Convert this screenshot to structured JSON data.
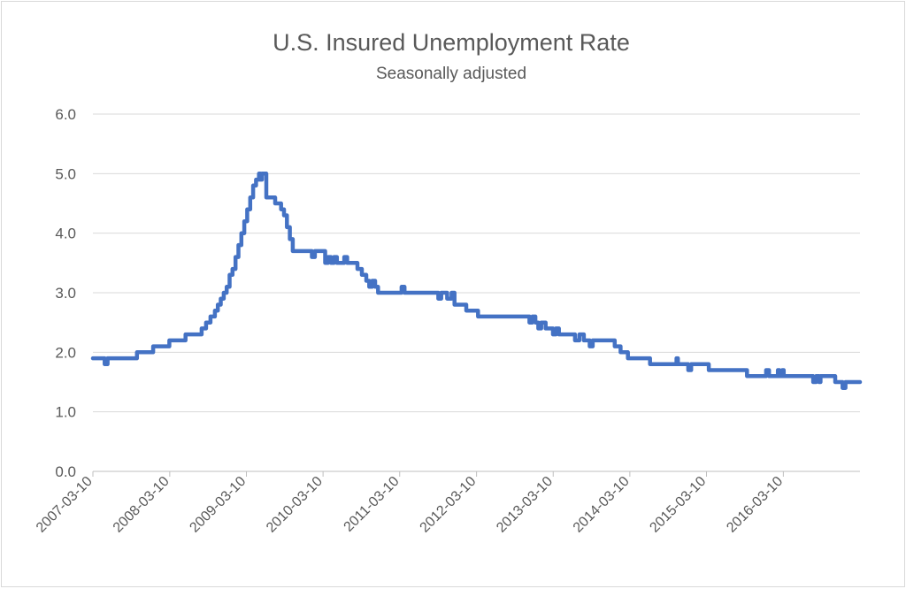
{
  "chart_data": {
    "type": "line",
    "title": "U.S. Insured Unemployment Rate",
    "subtitle": "Seasonally adjusted",
    "xlabel": "",
    "ylabel": "",
    "ylim": [
      0,
      6
    ],
    "yticks": [
      "0.0",
      "1.0",
      "2.0",
      "3.0",
      "4.0",
      "5.0",
      "6.0"
    ],
    "xlim": [
      "2007-03-10",
      "2017-03-10"
    ],
    "xticks": [
      "2007-03-10",
      "2008-03-10",
      "2009-03-10",
      "2010-03-10",
      "2011-03-10",
      "2012-03-10",
      "2013-03-10",
      "2014-03-10",
      "2015-03-10",
      "2016-03-10"
    ],
    "grid": true,
    "legend": "none",
    "series": [
      {
        "color": "#4472c4",
        "points": [
          [
            "2007-03-10",
            1.9
          ],
          [
            "2007-04-21",
            1.9
          ],
          [
            "2007-05-05",
            1.8
          ],
          [
            "2007-05-19",
            1.9
          ],
          [
            "2007-09-22",
            1.9
          ],
          [
            "2007-10-06",
            2.0
          ],
          [
            "2007-12-08",
            2.0
          ],
          [
            "2007-12-22",
            2.1
          ],
          [
            "2008-02-23",
            2.1
          ],
          [
            "2008-03-08",
            2.2
          ],
          [
            "2008-05-10",
            2.2
          ],
          [
            "2008-05-24",
            2.3
          ],
          [
            "2008-07-26",
            2.3
          ],
          [
            "2008-08-09",
            2.4
          ],
          [
            "2008-08-30",
            2.5
          ],
          [
            "2008-09-20",
            2.6
          ],
          [
            "2008-10-11",
            2.7
          ],
          [
            "2008-10-25",
            2.8
          ],
          [
            "2008-11-08",
            2.9
          ],
          [
            "2008-11-22",
            3.0
          ],
          [
            "2008-12-06",
            3.1
          ],
          [
            "2008-12-20",
            3.3
          ],
          [
            "2009-01-03",
            3.4
          ],
          [
            "2009-01-17",
            3.6
          ],
          [
            "2009-01-31",
            3.8
          ],
          [
            "2009-02-14",
            4.0
          ],
          [
            "2009-02-28",
            4.2
          ],
          [
            "2009-03-14",
            4.4
          ],
          [
            "2009-03-28",
            4.6
          ],
          [
            "2009-04-11",
            4.8
          ],
          [
            "2009-04-25",
            4.9
          ],
          [
            "2009-05-09",
            5.0
          ],
          [
            "2009-05-16",
            4.9
          ],
          [
            "2009-05-23",
            5.0
          ],
          [
            "2009-06-06",
            5.0
          ],
          [
            "2009-06-13",
            4.6
          ],
          [
            "2009-07-18",
            4.6
          ],
          [
            "2009-07-25",
            4.5
          ],
          [
            "2009-08-08",
            4.5
          ],
          [
            "2009-08-22",
            4.4
          ],
          [
            "2009-09-05",
            4.3
          ],
          [
            "2009-09-19",
            4.1
          ],
          [
            "2009-10-03",
            3.9
          ],
          [
            "2009-10-17",
            3.7
          ],
          [
            "2010-01-09",
            3.7
          ],
          [
            "2010-01-16",
            3.6
          ],
          [
            "2010-01-30",
            3.7
          ],
          [
            "2010-03-13",
            3.7
          ],
          [
            "2010-03-20",
            3.5
          ],
          [
            "2010-04-03",
            3.6
          ],
          [
            "2010-04-17",
            3.5
          ],
          [
            "2010-05-01",
            3.6
          ],
          [
            "2010-05-15",
            3.5
          ],
          [
            "2010-06-05",
            3.5
          ],
          [
            "2010-06-19",
            3.6
          ],
          [
            "2010-07-03",
            3.5
          ],
          [
            "2010-08-07",
            3.5
          ],
          [
            "2010-08-21",
            3.4
          ],
          [
            "2010-09-11",
            3.3
          ],
          [
            "2010-10-02",
            3.2
          ],
          [
            "2010-10-16",
            3.1
          ],
          [
            "2010-10-30",
            3.2
          ],
          [
            "2010-11-13",
            3.1
          ],
          [
            "2010-11-27",
            3.0
          ],
          [
            "2011-03-12",
            3.0
          ],
          [
            "2011-03-19",
            3.1
          ],
          [
            "2011-04-02",
            3.0
          ],
          [
            "2011-09-03",
            3.0
          ],
          [
            "2011-09-10",
            2.9
          ],
          [
            "2011-09-24",
            3.0
          ],
          [
            "2011-10-15",
            3.0
          ],
          [
            "2011-10-22",
            2.9
          ],
          [
            "2011-11-05",
            2.9
          ],
          [
            "2011-11-12",
            3.0
          ],
          [
            "2011-11-26",
            2.8
          ],
          [
            "2012-01-07",
            2.8
          ],
          [
            "2012-01-21",
            2.7
          ],
          [
            "2012-03-03",
            2.7
          ],
          [
            "2012-03-17",
            2.6
          ],
          [
            "2012-11-10",
            2.6
          ],
          [
            "2012-11-17",
            2.5
          ],
          [
            "2012-12-01",
            2.6
          ],
          [
            "2012-12-15",
            2.5
          ],
          [
            "2012-12-29",
            2.4
          ],
          [
            "2013-01-12",
            2.5
          ],
          [
            "2013-02-02",
            2.4
          ],
          [
            "2013-02-23",
            2.4
          ],
          [
            "2013-03-09",
            2.3
          ],
          [
            "2013-03-23",
            2.4
          ],
          [
            "2013-04-06",
            2.3
          ],
          [
            "2013-06-08",
            2.3
          ],
          [
            "2013-06-22",
            2.2
          ],
          [
            "2013-07-13",
            2.3
          ],
          [
            "2013-08-03",
            2.2
          ],
          [
            "2013-08-24",
            2.2
          ],
          [
            "2013-08-31",
            2.1
          ],
          [
            "2013-09-14",
            2.2
          ],
          [
            "2013-12-21",
            2.2
          ],
          [
            "2013-12-28",
            2.1
          ],
          [
            "2014-01-11",
            2.1
          ],
          [
            "2014-01-25",
            2.0
          ],
          [
            "2014-02-15",
            2.0
          ],
          [
            "2014-03-01",
            1.9
          ],
          [
            "2014-05-31",
            1.9
          ],
          [
            "2014-06-14",
            1.8
          ],
          [
            "2014-10-04",
            1.8
          ],
          [
            "2014-10-18",
            1.9
          ],
          [
            "2014-10-25",
            1.8
          ],
          [
            "2014-12-06",
            1.8
          ],
          [
            "2014-12-13",
            1.7
          ],
          [
            "2014-12-27",
            1.8
          ],
          [
            "2015-03-07",
            1.8
          ],
          [
            "2015-03-21",
            1.7
          ],
          [
            "2015-09-12",
            1.7
          ],
          [
            "2015-09-19",
            1.6
          ],
          [
            "2015-12-12",
            1.6
          ],
          [
            "2015-12-19",
            1.7
          ],
          [
            "2016-01-02",
            1.6
          ],
          [
            "2016-02-06",
            1.6
          ],
          [
            "2016-02-13",
            1.7
          ],
          [
            "2016-02-20",
            1.6
          ],
          [
            "2016-03-05",
            1.7
          ],
          [
            "2016-03-12",
            1.6
          ],
          [
            "2016-07-23",
            1.6
          ],
          [
            "2016-07-30",
            1.5
          ],
          [
            "2016-08-13",
            1.6
          ],
          [
            "2016-08-27",
            1.5
          ],
          [
            "2016-09-03",
            1.6
          ],
          [
            "2016-10-29",
            1.6
          ],
          [
            "2016-11-12",
            1.5
          ],
          [
            "2016-12-10",
            1.5
          ],
          [
            "2016-12-17",
            1.4
          ],
          [
            "2016-12-31",
            1.5
          ],
          [
            "2017-03-10",
            1.5
          ]
        ]
      }
    ]
  }
}
